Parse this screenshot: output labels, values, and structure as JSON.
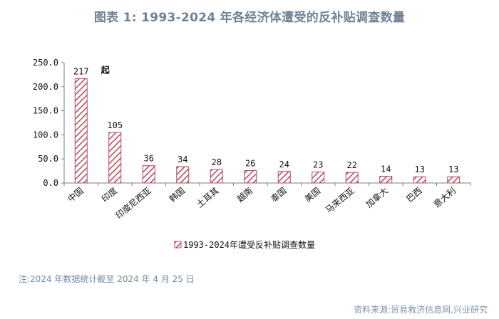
{
  "page": {
    "title": "图表 1:   1993-2024 年各经济体遭受的反补贴调查数量",
    "note": "注:2024 年数据统计截至 2024 年 4 月 25 日",
    "source": "资料来源:贸易救济信息网,兴业研究"
  },
  "chart_data": {
    "type": "bar",
    "title": "图表 1:   1993-2024 年各经济体遭受的反补贴调查数量",
    "categories": [
      "中国",
      "印度",
      "印度尼西亚",
      "韩国",
      "土耳其",
      "越南",
      "泰国",
      "美国",
      "马来西亚",
      "加拿大",
      "巴西",
      "意大利"
    ],
    "series": [
      {
        "name": "1993-2024年遭受反补贴调查数量",
        "values": [
          217,
          105,
          36,
          34,
          28,
          26,
          24,
          23,
          22,
          14,
          13,
          13
        ]
      }
    ],
    "data_labels": [
      "217",
      "105",
      "36",
      "34",
      "28",
      "26",
      "24",
      "23",
      "22",
      "14",
      "13",
      "13"
    ],
    "annotation": "起",
    "y_ticks": [
      "0.0",
      "50.0",
      "100.0",
      "150.0",
      "200.0",
      "250.0"
    ],
    "ylim": [
      0,
      250
    ],
    "grid": false,
    "legend_position": "bottom",
    "colors": {
      "bar_hatch": "#b5485a",
      "axis": "#7f7f7f"
    }
  }
}
